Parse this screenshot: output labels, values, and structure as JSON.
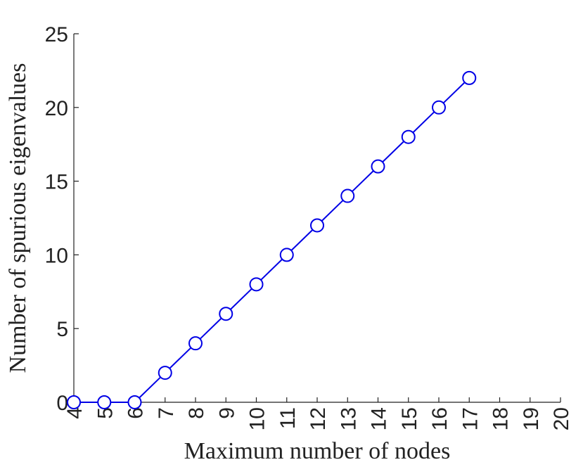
{
  "chart_data": {
    "type": "line",
    "title": "",
    "xlabel": "Maximum number of nodes",
    "ylabel": "Number of spurious eigenvalues",
    "xlim": [
      4,
      20
    ],
    "ylim": [
      0,
      25
    ],
    "x_ticks": [
      "4",
      "5",
      "6",
      "7",
      "8",
      "9",
      "10",
      "11",
      "12",
      "13",
      "14",
      "15",
      "16",
      "17",
      "18",
      "19",
      "20"
    ],
    "y_ticks": [
      "0",
      "5",
      "10",
      "15",
      "20",
      "25"
    ],
    "grid": false,
    "legend": "none",
    "series": [
      {
        "color": "#0000e6",
        "marker": "open-circle",
        "x": [
          4,
          5,
          6,
          7,
          8,
          9,
          10,
          11,
          12,
          13,
          14,
          15,
          16,
          17
        ],
        "y": [
          0,
          0,
          0,
          2,
          4,
          6,
          8,
          10,
          12,
          14,
          16,
          18,
          20,
          22
        ]
      }
    ]
  }
}
